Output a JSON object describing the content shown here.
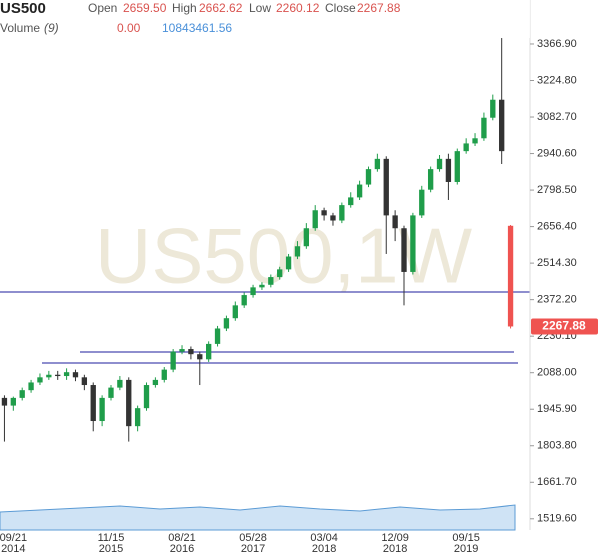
{
  "header": {
    "symbol": "US500",
    "open_label": "Open",
    "open": "2659.50",
    "high_label": "High",
    "high": "2662.62",
    "low_label": "Low",
    "low": "2260.12",
    "close_label": "Close",
    "close": "2267.88",
    "volume_label": "Volume",
    "volume_period": "(9)",
    "volume_change": "0.00",
    "volume": "10843461.56"
  },
  "chart_data": {
    "type": "candlestick",
    "watermark": "US500,1W",
    "categories": [
      null,
      "09/21",
      null,
      null,
      null,
      null,
      null,
      null,
      null,
      null,
      null,
      null,
      "11/15",
      null,
      null,
      null,
      null,
      null,
      null,
      null,
      "08/21",
      null,
      null,
      null,
      null,
      null,
      null,
      null,
      "05/28",
      null,
      null,
      null,
      null,
      null,
      null,
      null,
      "03/04",
      null,
      null,
      null,
      null,
      null,
      null,
      null,
      "12/09",
      null,
      null,
      null,
      null,
      null,
      null,
      null,
      "09/15",
      null,
      null,
      null,
      null,
      null
    ],
    "category_years": [
      null,
      "2014",
      null,
      null,
      null,
      null,
      null,
      null,
      null,
      null,
      null,
      null,
      "2015",
      null,
      null,
      null,
      null,
      null,
      null,
      null,
      "2016",
      null,
      null,
      null,
      null,
      null,
      null,
      null,
      "2017",
      null,
      null,
      null,
      null,
      null,
      null,
      null,
      "2018",
      null,
      null,
      null,
      null,
      null,
      null,
      null,
      "2018",
      null,
      null,
      null,
      null,
      null,
      null,
      null,
      "2019",
      null,
      null,
      null,
      null,
      null
    ],
    "open": [
      1990,
      1960,
      1990,
      2020,
      2050,
      2070,
      2080,
      2075,
      2090,
      2070,
      2040,
      1900,
      1990,
      2030,
      2060,
      1880,
      1950,
      2040,
      2060,
      2100,
      2170,
      2180,
      2160,
      2140,
      2200,
      2260,
      2300,
      2350,
      2390,
      2420,
      2430,
      2460,
      2490,
      2540,
      2580,
      2650,
      2720,
      2700,
      2680,
      2740,
      2770,
      2820,
      2880,
      2920,
      2700,
      2650,
      2480,
      2700,
      2800,
      2880,
      2920,
      2830,
      2950,
      2980,
      3000,
      3080,
      3150,
      2659.5
    ],
    "high": [
      2000,
      1995,
      2030,
      2060,
      2085,
      2095,
      2095,
      2105,
      2100,
      2080,
      2050,
      2000,
      2040,
      2075,
      2070,
      1960,
      2050,
      2070,
      2110,
      2180,
      2195,
      2190,
      2170,
      2210,
      2270,
      2310,
      2365,
      2400,
      2430,
      2440,
      2470,
      2500,
      2550,
      2600,
      2670,
      2740,
      2730,
      2710,
      2750,
      2790,
      2835,
      2890,
      2940,
      2930,
      2720,
      2660,
      2710,
      2815,
      2890,
      2935,
      2940,
      2960,
      3000,
      3020,
      3100,
      3170,
      3390,
      2662.62
    ],
    "low": [
      1820,
      1940,
      1980,
      2010,
      2040,
      2060,
      2060,
      2060,
      2055,
      2020,
      1860,
      1880,
      1980,
      2020,
      1820,
      1860,
      1940,
      2030,
      2050,
      2090,
      2160,
      2140,
      2040,
      2130,
      2190,
      2250,
      2290,
      2340,
      2380,
      2410,
      2420,
      2450,
      2480,
      2530,
      2570,
      2640,
      2680,
      2660,
      2670,
      2730,
      2760,
      2810,
      2870,
      2550,
      2600,
      2350,
      2470,
      2690,
      2790,
      2870,
      2760,
      2820,
      2940,
      2970,
      2990,
      3070,
      2900,
      2260.12
    ],
    "close": [
      1960,
      1990,
      2020,
      2050,
      2070,
      2080,
      2075,
      2090,
      2070,
      2040,
      1900,
      1990,
      2030,
      2060,
      1880,
      1950,
      2040,
      2060,
      2100,
      2170,
      2180,
      2160,
      2140,
      2200,
      2260,
      2300,
      2350,
      2390,
      2420,
      2430,
      2460,
      2490,
      2540,
      2580,
      2650,
      2720,
      2700,
      2680,
      2740,
      2770,
      2820,
      2880,
      2920,
      2700,
      2650,
      2480,
      2700,
      2800,
      2880,
      2920,
      2830,
      2950,
      2980,
      3000,
      3080,
      3150,
      2950,
      2267.88
    ],
    "last_label": "2267.88",
    "up_color": "#1f9d4a",
    "down_color": "#333333",
    "last_color": "#ef5350",
    "ylim": [
      1476,
      3538
    ],
    "yticks": [
      {
        "value": 1519.6,
        "label": "1519.60"
      },
      {
        "value": 1661.7,
        "label": "1661.70"
      },
      {
        "value": 1803.8,
        "label": "1803.80"
      },
      {
        "value": 1945.9,
        "label": "1945.90"
      },
      {
        "value": 2088,
        "label": "2088.00"
      },
      {
        "value": 2230.1,
        "label": "2230.10"
      },
      {
        "value": 2372.2,
        "label": "2372.20"
      },
      {
        "value": 2514.3,
        "label": "2514.30"
      },
      {
        "value": 2656.4,
        "label": "2656.40"
      },
      {
        "value": 2798.5,
        "label": "2798.50"
      },
      {
        "value": 2940.6,
        "label": "2940.60"
      },
      {
        "value": 3082.7,
        "label": "3082.70"
      },
      {
        "value": 3224.8,
        "label": "3224.80"
      },
      {
        "value": 3366.9,
        "label": "3366.90"
      }
    ]
  }
}
